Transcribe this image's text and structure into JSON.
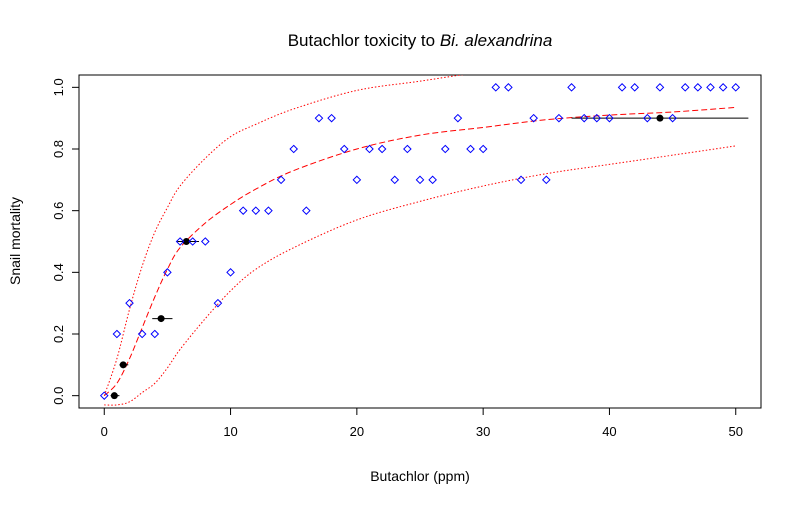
{
  "chart_data": {
    "type": "scatter",
    "title_main": "Butachlor toxicity to ",
    "title_species": "Bi. alexandrina",
    "xlabel": "Butachlor (ppm)",
    "ylabel": "Snail mortality",
    "xlim": [
      -2,
      52
    ],
    "ylim": [
      -0.04,
      1.04
    ],
    "x_ticks": [
      0,
      10,
      20,
      30,
      40,
      50
    ],
    "x_tick_labels": [
      "0",
      "10",
      "20",
      "30",
      "40",
      "50"
    ],
    "y_ticks": [
      0.0,
      0.2,
      0.4,
      0.6,
      0.8,
      1.0
    ],
    "y_tick_labels": [
      "0.0",
      "0.2",
      "0.4",
      "0.6",
      "0.8",
      "1.0"
    ],
    "colors": {
      "observations": "#0000ff",
      "fit": "#ff0000",
      "binned": "#000000"
    },
    "observations": {
      "x": [
        0,
        1,
        2,
        3,
        4,
        5,
        6,
        7,
        8,
        9,
        10,
        11,
        12,
        13,
        14,
        15,
        16,
        17,
        18,
        19,
        20,
        21,
        22,
        23,
        24,
        25,
        26,
        27,
        28,
        29,
        30,
        31,
        32,
        33,
        34,
        35,
        36,
        37,
        38,
        39,
        40,
        41,
        42,
        43,
        44,
        45,
        46,
        47,
        48,
        49,
        50
      ],
      "y": [
        0.0,
        0.2,
        0.3,
        0.2,
        0.2,
        0.4,
        0.5,
        0.5,
        0.5,
        0.3,
        0.4,
        0.6,
        0.6,
        0.6,
        0.7,
        0.8,
        0.6,
        0.9,
        0.9,
        0.8,
        0.7,
        0.8,
        0.8,
        0.7,
        0.8,
        0.7,
        0.7,
        0.8,
        0.9,
        0.8,
        0.8,
        1.0,
        1.0,
        0.7,
        0.9,
        0.7,
        0.9,
        1.0,
        0.9,
        0.9,
        0.9,
        1.0,
        1.0,
        0.9,
        1.0,
        0.9,
        1.0,
        1.0,
        1.0,
        1.0,
        1.0
      ]
    },
    "binned_means": [
      {
        "x": 0.8,
        "y": 0.0,
        "xmin": 0.5,
        "xmax": 1.2
      },
      {
        "x": 1.5,
        "y": 0.1,
        "xmin": 1.2,
        "xmax": 1.9
      },
      {
        "x": 4.5,
        "y": 0.25,
        "xmin": 3.8,
        "xmax": 5.4
      },
      {
        "x": 6.5,
        "y": 0.5,
        "xmin": 5.8,
        "xmax": 7.5
      },
      {
        "x": 44.0,
        "y": 0.9,
        "xmin": 37.0,
        "xmax": 51.0
      }
    ],
    "fit": {
      "x": [
        0,
        1,
        2,
        3,
        4,
        5,
        6,
        8,
        10,
        12,
        15,
        20,
        25,
        30,
        35,
        40,
        45,
        50
      ],
      "mid": [
        0.0,
        0.04,
        0.12,
        0.22,
        0.32,
        0.41,
        0.48,
        0.56,
        0.62,
        0.67,
        0.73,
        0.8,
        0.845,
        0.87,
        0.895,
        0.91,
        0.92,
        0.935
      ],
      "upper": [
        0.0,
        0.12,
        0.28,
        0.42,
        0.53,
        0.61,
        0.68,
        0.77,
        0.84,
        0.88,
        0.93,
        0.99,
        1.02,
        1.05,
        1.07,
        1.085,
        1.1,
        1.11
      ],
      "lower": [
        -0.03,
        -0.03,
        -0.02,
        0.01,
        0.04,
        0.09,
        0.15,
        0.25,
        0.34,
        0.41,
        0.48,
        0.57,
        0.63,
        0.68,
        0.72,
        0.75,
        0.78,
        0.81
      ]
    }
  }
}
